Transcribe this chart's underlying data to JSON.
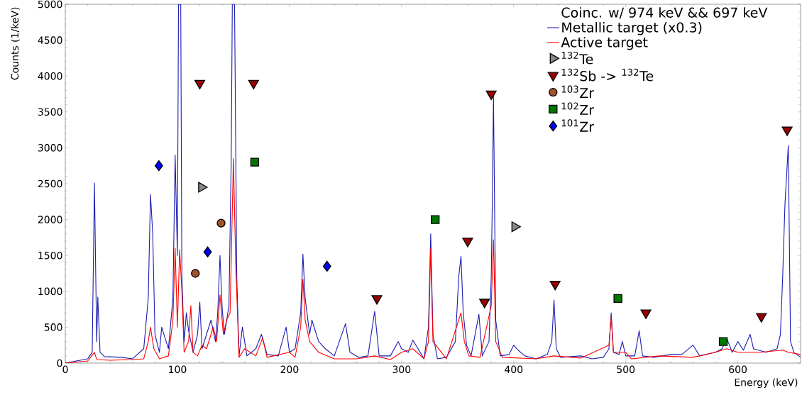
{
  "chart_data": {
    "type": "line",
    "xlabel": "Energy (keV)",
    "ylabel": "Counts (1/keV)",
    "legend_title": "Coinc. w/ 974 keV && 697 keV",
    "legend": "top right",
    "grid": false,
    "xlim": [
      0,
      656
    ],
    "ylim": [
      0,
      5000
    ],
    "xticks": [
      0,
      100,
      200,
      300,
      400,
      500,
      600
    ],
    "yticks": [
      0,
      500,
      1000,
      1500,
      2000,
      2500,
      3000,
      3500,
      4000,
      4500,
      5000
    ],
    "series": [
      {
        "name": "Metallic target (x0.3)",
        "type": "line",
        "color": "#1c1cb0",
        "x": [
          0,
          20,
          24,
          26,
          28,
          29,
          31,
          35,
          50,
          60,
          70,
          74,
          76,
          78,
          80,
          84,
          86,
          89,
          92,
          96,
          98,
          100,
          101,
          103,
          104,
          106,
          108,
          110,
          114,
          118,
          120,
          122,
          126,
          130,
          134,
          136,
          138,
          140,
          142,
          146,
          148,
          149,
          151,
          153,
          155,
          158,
          162,
          170,
          175,
          180,
          190,
          197,
          200,
          205,
          210,
          212,
          214,
          218,
          220,
          226,
          232,
          240,
          250,
          254,
          262,
          270,
          276,
          280,
          290,
          297,
          300,
          306,
          310,
          314,
          320,
          324,
          326,
          328,
          332,
          340,
          348,
          351,
          353,
          355,
          358,
          362,
          369,
          372,
          378,
          380,
          381,
          382,
          384,
          388,
          396,
          400,
          404,
          410,
          420,
          430,
          434,
          436,
          438,
          442,
          460,
          470,
          480,
          485,
          487,
          489,
          494,
          497,
          500,
          508,
          512,
          515,
          525,
          540,
          550,
          560,
          566,
          580,
          586,
          590,
          595,
          600,
          605,
          611,
          614,
          625,
          635,
          638,
          640,
          642,
          645,
          647,
          650,
          656
        ],
        "values": [
          0,
          60,
          150,
          2510,
          300,
          920,
          150,
          90,
          80,
          60,
          200,
          900,
          2350,
          1800,
          400,
          150,
          500,
          350,
          200,
          900,
          2900,
          1500,
          5000,
          5000,
          1200,
          300,
          700,
          450,
          150,
          400,
          850,
          200,
          400,
          600,
          300,
          700,
          1500,
          750,
          400,
          800,
          2800,
          5000,
          5000,
          1200,
          100,
          500,
          100,
          200,
          400,
          120,
          100,
          500,
          150,
          200,
          700,
          1520,
          900,
          400,
          600,
          300,
          200,
          100,
          550,
          150,
          80,
          100,
          720,
          100,
          100,
          300,
          200,
          150,
          320,
          220,
          60,
          500,
          1800,
          400,
          60,
          80,
          300,
          1200,
          1490,
          700,
          250,
          100,
          680,
          100,
          300,
          1200,
          2300,
          3730,
          600,
          100,
          120,
          250,
          180,
          100,
          60,
          120,
          300,
          880,
          200,
          80,
          100,
          60,
          80,
          200,
          700,
          150,
          120,
          300,
          100,
          100,
          450,
          100,
          80,
          120,
          120,
          250,
          100,
          150,
          200,
          350,
          150,
          300,
          180,
          400,
          200,
          150,
          200,
          400,
          1200,
          2200,
          3030,
          300,
          150,
          80
        ]
      },
      {
        "name": "Active target",
        "type": "line",
        "color": "#ff0000",
        "x": [
          0,
          20,
          26,
          28,
          40,
          60,
          70,
          74,
          76,
          79,
          84,
          92,
          96,
          98,
          100,
          102,
          104,
          106,
          110,
          112,
          114,
          118,
          122,
          126,
          130,
          132,
          135,
          138,
          141,
          144,
          147,
          150,
          152,
          155,
          160,
          170,
          176,
          180,
          200,
          205,
          210,
          212,
          214,
          218,
          226,
          240,
          260,
          276,
          290,
          300,
          310,
          320,
          324,
          326,
          328,
          340,
          353,
          356,
          360,
          370,
          380,
          382,
          384,
          390,
          420,
          436,
          460,
          485,
          487,
          489,
          500,
          505,
          530,
          560,
          580,
          590,
          600,
          620,
          640,
          645,
          656
        ],
        "values": [
          0,
          30,
          150,
          50,
          40,
          50,
          60,
          300,
          500,
          200,
          60,
          100,
          600,
          1600,
          500,
          1580,
          1000,
          150,
          300,
          800,
          150,
          100,
          250,
          200,
          400,
          500,
          300,
          950,
          400,
          600,
          700,
          2850,
          1400,
          80,
          200,
          100,
          350,
          80,
          150,
          80,
          500,
          1170,
          600,
          300,
          150,
          60,
          60,
          100,
          50,
          150,
          200,
          60,
          300,
          1600,
          300,
          60,
          700,
          300,
          100,
          80,
          800,
          1720,
          300,
          80,
          60,
          100,
          70,
          250,
          650,
          150,
          150,
          60,
          100,
          80,
          150,
          200,
          150,
          150,
          180,
          150,
          120
        ]
      },
      {
        "name": "$^{132}$Te",
        "type": "scatter",
        "marker": "triangle-right",
        "color": "#888888",
        "x": [
          121.5,
          401
        ],
        "values": [
          2450,
          1900
        ]
      },
      {
        "name": "$^{132}$Sb -> $^{132}$Te",
        "type": "scatter",
        "marker": "triangle-down",
        "color": "#990000",
        "x": [
          120,
          168,
          278,
          359,
          374,
          380,
          437,
          518,
          621,
          644
        ],
        "values": [
          3900,
          3900,
          900,
          1700,
          850,
          3750,
          1100,
          700,
          650,
          3250
        ]
      },
      {
        "name": "$^{103}$Zr",
        "type": "scatter",
        "marker": "circle",
        "color": "#a0522d",
        "x": [
          116,
          139
        ],
        "values": [
          1250,
          1950
        ]
      },
      {
        "name": "$^{102}$Zr",
        "type": "scatter",
        "marker": "square",
        "color": "#007700",
        "x": [
          169,
          330,
          493,
          587
        ],
        "values": [
          2800,
          2000,
          900,
          300
        ]
      },
      {
        "name": "$^{101}$Zr",
        "type": "scatter",
        "marker": "diamond",
        "color": "#0000ff",
        "x": [
          83.5,
          127,
          233.5
        ],
        "values": [
          2750,
          1550,
          1350
        ]
      }
    ]
  }
}
